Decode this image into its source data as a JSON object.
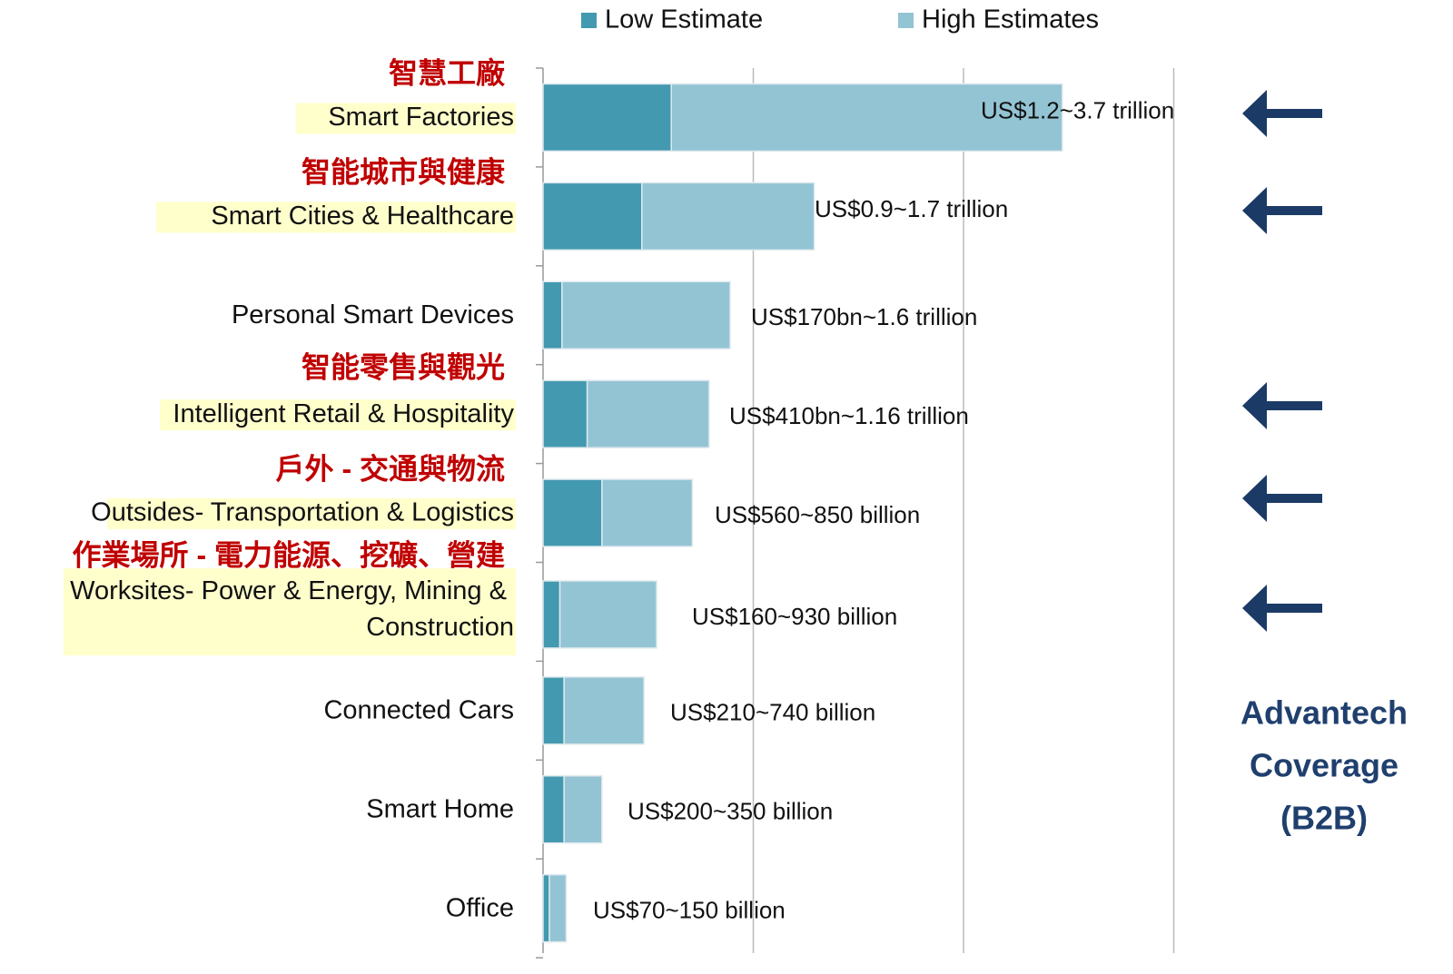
{
  "chart_data": {
    "type": "stacked_barh",
    "categories": [
      "Smart Factories",
      "Smart Cities & Healthcare",
      "Personal Smart Devices",
      "Intelligent Retail & Hospitality",
      "Outsides- Transportation & Logistics",
      "Worksites- Power & Energy, Mining &\nConstruction",
      "Connected Cars",
      "Smart Home",
      "Office"
    ],
    "chinese_labels": [
      "智慧工廠",
      "智能城市與健康",
      null,
      "智能零售與觀光",
      "戶外 - 交通與物流",
      "作業場所 - 電力能源、挖礦、營建",
      null,
      null,
      null
    ],
    "highlighted": [
      true,
      true,
      false,
      true,
      true,
      true,
      false,
      false,
      false
    ],
    "advantech_coverage": [
      true,
      true,
      false,
      true,
      true,
      true,
      false,
      false,
      false
    ],
    "series": [
      {
        "name": "Low Estimate",
        "color": "#4299b0",
        "values": [
          0.61,
          0.47,
          0.09,
          0.21,
          0.28,
          0.08,
          0.1,
          0.1,
          0.03
        ]
      },
      {
        "name": "High Estimates",
        "color": "#93c4d4",
        "values": [
          1.86,
          0.82,
          0.8,
          0.58,
          0.43,
          0.46,
          0.38,
          0.18,
          0.08
        ]
      }
    ],
    "annotations": [
      "US$1.2~3.7 trillion",
      "US$0.9~1.7 trillion",
      "US$170bn~1.6 trillion",
      "US$410bn~1.16 trillion",
      "US$560~850 billion",
      "US$160~930 billion",
      "US$210~740 billion",
      "US$200~350 billion",
      "US$70~150 billion"
    ],
    "coverage_text": [
      "Advantech",
      "Coverage",
      "(B2B)"
    ],
    "xlim": [
      0,
      4
    ],
    "grid_x": [
      0,
      1,
      2,
      3
    ],
    "grid": true
  }
}
